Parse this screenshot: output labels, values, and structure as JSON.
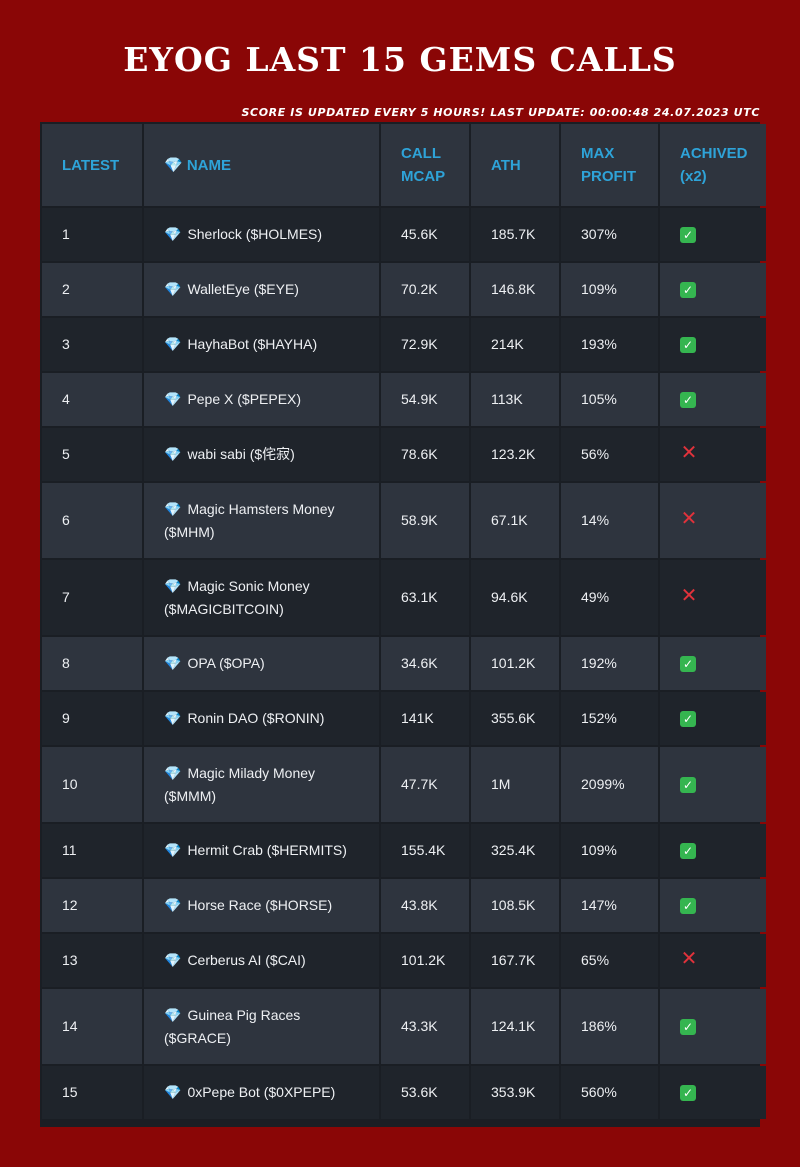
{
  "title": "EYOG LAST 15 GEMS CALLS",
  "update_note": "SCORE IS UPDATED EVERY 5 HOURS! LAST UPDATE: 00:00:48 24.07.2023 UTC",
  "colors": {
    "background": "#8a0606",
    "header_text": "#2ea3d8",
    "yes": "#35b550",
    "no": "#e0323b"
  },
  "icons": {
    "name_prefix": "gem-icon",
    "achieved_yes": "check-mark-icon",
    "achieved_no": "cross-mark-icon"
  },
  "columns": {
    "latest": "LATEST",
    "name": "💎 NAME",
    "call_mcap": "CALL MCAP",
    "ath": "ATH",
    "max_profit": "MAX PROFIT",
    "achieved": "ACHIVED (x2)"
  },
  "rows": [
    {
      "latest": "1",
      "name": "Sherlock ($HOLMES)",
      "call_mcap": "45.6K",
      "ath": "185.7K",
      "max_profit": "307%",
      "achieved": true
    },
    {
      "latest": "2",
      "name": "WalletEye ($EYE)",
      "call_mcap": "70.2K",
      "ath": "146.8K",
      "max_profit": "109%",
      "achieved": true
    },
    {
      "latest": "3",
      "name": "HayhaBot ($HAYHA)",
      "call_mcap": "72.9K",
      "ath": "214K",
      "max_profit": "193%",
      "achieved": true
    },
    {
      "latest": "4",
      "name": "Pepe X ($PEPEX)",
      "call_mcap": "54.9K",
      "ath": "113K",
      "max_profit": "105%",
      "achieved": true
    },
    {
      "latest": "5",
      "name": "wabi sabi ($侘寂)",
      "call_mcap": "78.6K",
      "ath": "123.2K",
      "max_profit": "56%",
      "achieved": false
    },
    {
      "latest": "6",
      "name": "Magic Hamsters Money ($MHM)",
      "call_mcap": "58.9K",
      "ath": "67.1K",
      "max_profit": "14%",
      "achieved": false
    },
    {
      "latest": "7",
      "name": "Magic Sonic Money ($MAGICBITCOIN)",
      "call_mcap": "63.1K",
      "ath": "94.6K",
      "max_profit": "49%",
      "achieved": false
    },
    {
      "latest": "8",
      "name": "OPA ($OPA)",
      "call_mcap": "34.6K",
      "ath": "101.2K",
      "max_profit": "192%",
      "achieved": true
    },
    {
      "latest": "9",
      "name": "Ronin DAO ($RONIN)",
      "call_mcap": "141K",
      "ath": "355.6K",
      "max_profit": "152%",
      "achieved": true
    },
    {
      "latest": "10",
      "name": "Magic Milady Money ($MMM)",
      "call_mcap": "47.7K",
      "ath": "1M",
      "max_profit": "2099%",
      "achieved": true
    },
    {
      "latest": "11",
      "name": "Hermit Crab ($HERMITS)",
      "call_mcap": "155.4K",
      "ath": "325.4K",
      "max_profit": "109%",
      "achieved": true
    },
    {
      "latest": "12",
      "name": "Horse Race ($HORSE)",
      "call_mcap": "43.8K",
      "ath": "108.5K",
      "max_profit": "147%",
      "achieved": true
    },
    {
      "latest": "13",
      "name": "Cerberus AI ($CAI)",
      "call_mcap": "101.2K",
      "ath": "167.7K",
      "max_profit": "65%",
      "achieved": false
    },
    {
      "latest": "14",
      "name": "Guinea Pig Races ($GRACE)",
      "call_mcap": "43.3K",
      "ath": "124.1K",
      "max_profit": "186%",
      "achieved": true
    },
    {
      "latest": "15",
      "name": "0xPepe Bot ($0XPEPE)",
      "call_mcap": "53.6K",
      "ath": "353.9K",
      "max_profit": "560%",
      "achieved": true
    }
  ]
}
